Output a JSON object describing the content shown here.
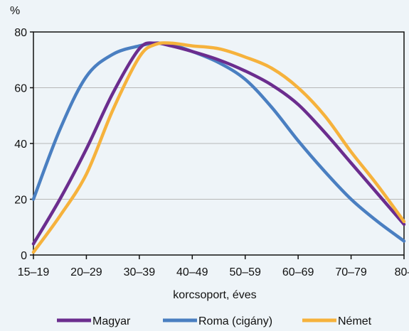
{
  "chart_data": {
    "type": "line",
    "xlabel": "korcsoport, éves",
    "ylabel": "%",
    "ylim": [
      0,
      80
    ],
    "yticks": [
      0,
      20,
      40,
      60,
      80
    ],
    "categories": [
      "15–19",
      "20–29",
      "30–39",
      "40–49",
      "50–59",
      "60–69",
      "70–79",
      "80–"
    ],
    "grid": "horizontal",
    "legend": "bottom",
    "series": [
      {
        "name": "Magyar",
        "color": "#6b2d8e",
        "x": [
          0,
          0.5,
          1,
          1.5,
          2,
          2.3,
          2.6,
          3,
          3.5,
          4,
          4.5,
          5,
          5.5,
          6,
          6.5,
          7
        ],
        "values": [
          4,
          20,
          38,
          58,
          74,
          76,
          75,
          73,
          70,
          66,
          61,
          54,
          44,
          33,
          22,
          11
        ]
      },
      {
        "name": "Roma (cigány)",
        "color": "#4a7fc1",
        "x": [
          0,
          0.5,
          1,
          1.5,
          2,
          2.3,
          2.6,
          3,
          3.5,
          4,
          4.5,
          5,
          5.5,
          6,
          6.5,
          7
        ],
        "values": [
          20,
          45,
          64,
          72,
          75,
          76,
          75.5,
          73,
          69,
          63,
          53,
          41,
          30,
          20,
          12,
          5
        ]
      },
      {
        "name": "Német",
        "color": "#f6b23c",
        "x": [
          0,
          0.5,
          1,
          1.5,
          2,
          2.3,
          2.6,
          3,
          3.5,
          4,
          4.5,
          5,
          5.5,
          6,
          6.5,
          7
        ],
        "values": [
          1,
          14,
          29,
          52,
          71,
          75.5,
          76,
          75,
          74,
          71,
          67,
          60,
          50,
          37,
          25,
          12
        ]
      }
    ]
  }
}
